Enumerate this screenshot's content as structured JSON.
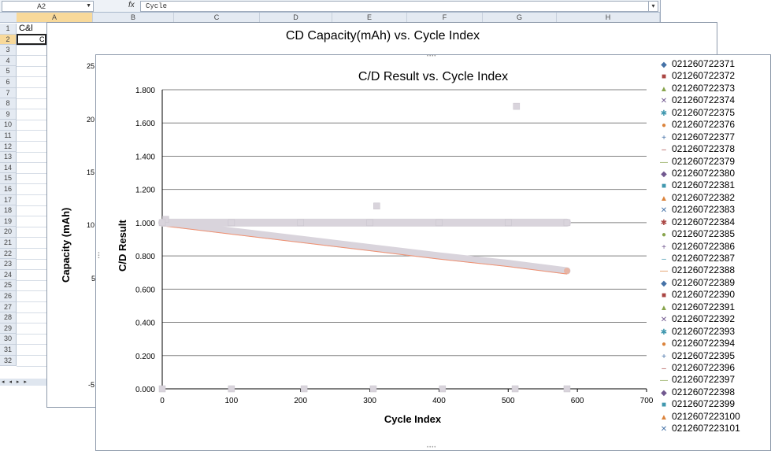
{
  "sheet": {
    "name_box": "A2",
    "fx": "fx",
    "formula_value": "Cycle",
    "columns": [
      "A",
      "B",
      "C",
      "D",
      "E",
      "F",
      "G",
      "H"
    ],
    "rows": [
      "1",
      "2",
      "3",
      "4",
      "5",
      "6",
      "7",
      "8",
      "9",
      "10",
      "11",
      "12",
      "13",
      "14",
      "15",
      "16",
      "17",
      "18",
      "19",
      "20",
      "21",
      "22",
      "23",
      "24",
      "25",
      "26",
      "27",
      "28",
      "29",
      "30",
      "31",
      "32"
    ],
    "a1_text": "C&l",
    "a2_text": "C",
    "tab_nav": "◂ ◂ ▸ ▸"
  },
  "chart1": {
    "title": "CD Capacity(mAh)   vs. Cycle Index",
    "ylabel": "Capacity (mAh)",
    "yticks_visible": [
      "25",
      "20",
      "15",
      "10",
      "5",
      "-5"
    ]
  },
  "chart_data": {
    "type": "scatter",
    "title": "C/D Result vs. Cycle Index",
    "xlabel": "Cycle Index",
    "ylabel": "C/D Result",
    "xlim": [
      0,
      700
    ],
    "ylim": [
      0,
      1.8
    ],
    "xticks": [
      "0",
      "100",
      "200",
      "300",
      "400",
      "500",
      "600",
      "700"
    ],
    "yticks": [
      "0.000",
      "0.200",
      "0.400",
      "0.600",
      "0.800",
      "1.000",
      "1.200",
      "1.400",
      "1.600",
      "1.800"
    ],
    "grid": "horizontal",
    "legend_position": "right",
    "series": [
      {
        "name": "021260722371",
        "marker": "diamond",
        "color": "#4572a7"
      },
      {
        "name": "021260722372",
        "marker": "square",
        "color": "#aa4643"
      },
      {
        "name": "021260722373",
        "marker": "triangle",
        "color": "#89a54e"
      },
      {
        "name": "021260722374",
        "marker": "x",
        "color": "#71588f"
      },
      {
        "name": "021260722375",
        "marker": "star",
        "color": "#4198af"
      },
      {
        "name": "021260722376",
        "marker": "circle",
        "color": "#db843d"
      },
      {
        "name": "021260722377",
        "marker": "plus",
        "color": "#4572a7"
      },
      {
        "name": "021260722378",
        "marker": "dash",
        "color": "#aa4643"
      },
      {
        "name": "021260722379",
        "marker": "line",
        "color": "#89a54e"
      },
      {
        "name": "021260722380",
        "marker": "diamond",
        "color": "#71588f"
      },
      {
        "name": "021260722381",
        "marker": "square",
        "color": "#4198af"
      },
      {
        "name": "021260722382",
        "marker": "triangle",
        "color": "#db843d"
      },
      {
        "name": "021260722383",
        "marker": "x",
        "color": "#4572a7"
      },
      {
        "name": "021260722384",
        "marker": "star",
        "color": "#aa4643"
      },
      {
        "name": "021260722385",
        "marker": "circle",
        "color": "#89a54e"
      },
      {
        "name": "021260722386",
        "marker": "plus",
        "color": "#71588f"
      },
      {
        "name": "021260722387",
        "marker": "dash",
        "color": "#4198af"
      },
      {
        "name": "021260722388",
        "marker": "line",
        "color": "#db843d"
      },
      {
        "name": "021260722389",
        "marker": "diamond",
        "color": "#4572a7"
      },
      {
        "name": "021260722390",
        "marker": "square",
        "color": "#aa4643"
      },
      {
        "name": "021260722391",
        "marker": "triangle",
        "color": "#89a54e"
      },
      {
        "name": "021260722392",
        "marker": "x",
        "color": "#71588f"
      },
      {
        "name": "021260722393",
        "marker": "star",
        "color": "#4198af"
      },
      {
        "name": "021260722394",
        "marker": "circle",
        "color": "#db843d"
      },
      {
        "name": "021260722395",
        "marker": "plus",
        "color": "#4572a7"
      },
      {
        "name": "021260722396",
        "marker": "dash",
        "color": "#aa4643"
      },
      {
        "name": "021260722397",
        "marker": "line",
        "color": "#89a54e"
      },
      {
        "name": "021260722398",
        "marker": "diamond",
        "color": "#71588f"
      },
      {
        "name": "021260722399",
        "marker": "square",
        "color": "#4198af"
      },
      {
        "name": "0212607223100",
        "marker": "triangle",
        "color": "#db843d"
      },
      {
        "name": "0212607223101",
        "marker": "x",
        "color": "#4572a7"
      }
    ],
    "points": {
      "baseline_one": {
        "x": [
          0,
          100,
          200,
          300,
          400,
          500,
          585
        ],
        "y": [
          1.0,
          1.0,
          1.0,
          1.0,
          1.0,
          1.0,
          1.0
        ]
      },
      "declining": {
        "x": [
          0,
          100,
          200,
          300,
          400,
          500,
          585
        ],
        "y": [
          1.0,
          0.95,
          0.9,
          0.85,
          0.8,
          0.755,
          0.71
        ]
      },
      "zero_row": {
        "x": [
          0,
          100,
          205,
          305,
          405,
          510,
          585
        ],
        "y": [
          0,
          0,
          0,
          0,
          0,
          0,
          0
        ]
      },
      "outliers": {
        "x": [
          5,
          310,
          512
        ],
        "y": [
          1.02,
          1.1,
          1.7
        ]
      }
    }
  },
  "colors": {
    "cluster": "#d9d4dc",
    "accent_line": "#f09070",
    "grid": "#808080"
  }
}
